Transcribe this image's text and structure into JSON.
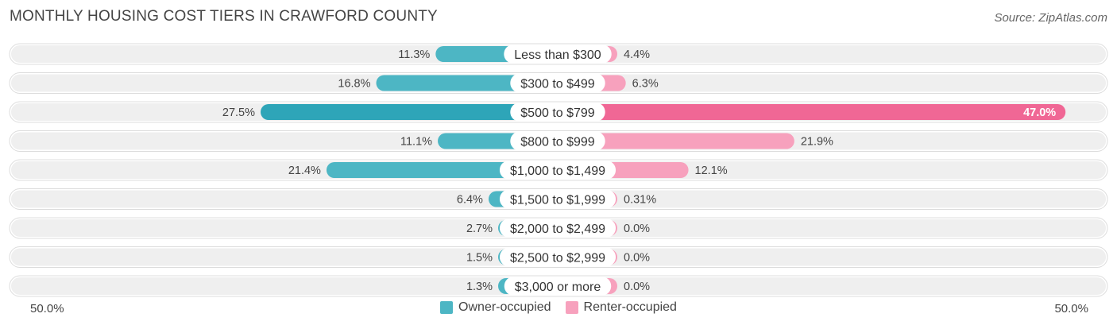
{
  "title": "MONTHLY HOUSING COST TIERS IN CRAWFORD COUNTY",
  "source": "Source: ZipAtlas.com",
  "colors": {
    "owner": "#4db6c4",
    "owner_strong": "#2ea5b8",
    "renter": "#f7a1bd",
    "renter_strong": "#f06795",
    "row_bg": "#efefef"
  },
  "legend": {
    "owner_label": "Owner-occupied",
    "renter_label": "Renter-occupied"
  },
  "axis": {
    "left_label": "50.0%",
    "right_label": "50.0%"
  },
  "chart_data": {
    "type": "bar",
    "orientation": "horizontal-diverging",
    "title": "MONTHLY HOUSING COST TIERS IN CRAWFORD COUNTY",
    "categories": [
      "Less than $300",
      "$300 to $499",
      "$500 to $799",
      "$800 to $999",
      "$1,000 to $1,499",
      "$1,500 to $1,999",
      "$2,000 to $2,499",
      "$2,500 to $2,999",
      "$3,000 or more"
    ],
    "series": [
      {
        "name": "Owner-occupied",
        "values": [
          11.3,
          16.8,
          27.5,
          11.1,
          21.4,
          6.4,
          2.7,
          1.5,
          1.3
        ],
        "labels": [
          "11.3%",
          "16.8%",
          "27.5%",
          "11.1%",
          "21.4%",
          "6.4%",
          "2.7%",
          "1.5%",
          "1.3%"
        ]
      },
      {
        "name": "Renter-occupied",
        "values": [
          4.4,
          6.3,
          47.0,
          21.9,
          12.1,
          0.31,
          0.0,
          0.0,
          0.0
        ],
        "labels": [
          "4.4%",
          "6.3%",
          "47.0%",
          "21.9%",
          "12.1%",
          "0.31%",
          "0.0%",
          "0.0%",
          "0.0%"
        ]
      }
    ],
    "xlim": [
      -50,
      50
    ],
    "legend_position": "bottom-center"
  }
}
